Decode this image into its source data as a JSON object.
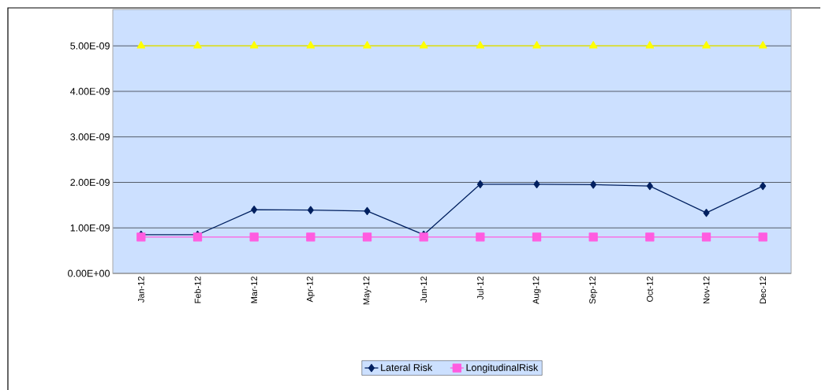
{
  "chart_data": {
    "type": "line",
    "categories": [
      "Jan-12",
      "Feb-12",
      "Mar-12",
      "Apr-12",
      "May-12",
      "Jun-12",
      "Jul-12",
      "Aug-12",
      "Sep-12",
      "Oct-12",
      "Nov-12",
      "Dec-12"
    ],
    "series": [
      {
        "name": "Lateral Risk",
        "color": "#002060",
        "marker": "diamond",
        "values": [
          8.5e-10,
          8.5e-10,
          1.4e-09,
          1.39e-09,
          1.37e-09,
          8.5e-10,
          1.96e-09,
          1.96e-09,
          1.95e-09,
          1.92e-09,
          1.33e-09,
          1.92e-09
        ]
      },
      {
        "name": "LongitudinalRisk",
        "color": "#ff5ce0",
        "marker": "square",
        "values": [
          8e-10,
          8e-10,
          8e-10,
          8e-10,
          8e-10,
          8e-10,
          8e-10,
          8e-10,
          8e-10,
          8e-10,
          8e-10,
          8e-10
        ]
      },
      {
        "color": "#ffff00",
        "marker": "triangle",
        "values": [
          5e-09,
          5e-09,
          5e-09,
          5e-09,
          5e-09,
          5e-09,
          5e-09,
          5e-09,
          5e-09,
          5e-09,
          5e-09,
          5e-09
        ]
      }
    ],
    "ylim": [
      0,
      5.8e-09
    ],
    "yticks": [
      {
        "value": 0,
        "label": "0.00E+00"
      },
      {
        "value": 1e-09,
        "label": "1.00E-09"
      },
      {
        "value": 2e-09,
        "label": "2.00E-09"
      },
      {
        "value": 3e-09,
        "label": "3.00E-09"
      },
      {
        "value": 4e-09,
        "label": "4.00E-09"
      },
      {
        "value": 5e-09,
        "label": "5.00E-09"
      }
    ],
    "grid": "y",
    "legend": "bottom",
    "line_style": "solid"
  }
}
